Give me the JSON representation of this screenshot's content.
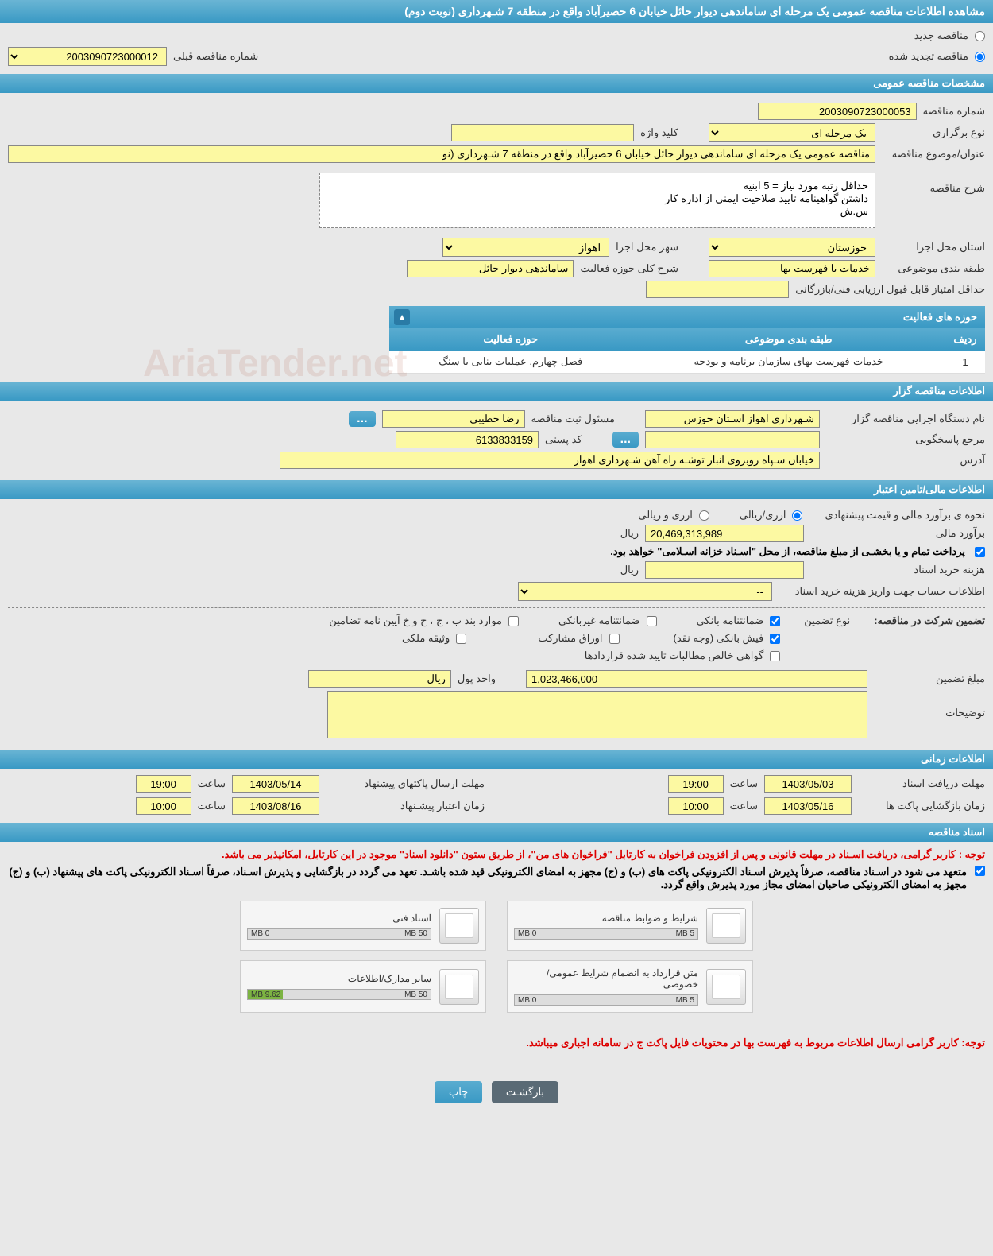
{
  "header": {
    "title": "مشاهده اطلاعات مناقصه عمومی یک مرحله ای ساماندهی دیوار حائل خیابان 6 حصیرآباد واقع در منطقه 7 شـهرداری (نوبت دوم)"
  },
  "tender_type": {
    "new_label": "مناقصه جدید",
    "renewed_label": "مناقصه تجدید شده",
    "prev_number_label": "شماره مناقصه قبلی",
    "prev_number_value": "2003090723000012"
  },
  "sections": {
    "general": "مشخصات مناقصه عمومی",
    "organizer": "اطلاعات مناقصه گزار",
    "financial": "اطلاعات مالی/تامین اعتبار",
    "timing": "اطلاعات زمانی",
    "documents": "اسناد مناقصه"
  },
  "general": {
    "number_label": "شماره مناقصه",
    "number_value": "2003090723000053",
    "type_label": "نوع برگزاری",
    "type_value": "یک مرحله ای",
    "keyword_label": "کلید واژه",
    "keyword_value": "",
    "subject_label": "عنوان/موضوع مناقصه",
    "subject_value": "مناقصه عمومی یک مرحله ای ساماندهی دیوار حائل خیابان 6 حصیرآباد واقع در منطقه 7 شـهرداری (نو",
    "description_label": "شرح مناقصه",
    "description_value": "حداقل رتبه مورد نیاز = 5 ابنیه\nداشتن گواهینامه تایید صلاحیت ایمنی از اداره کار\nس.ش",
    "province_label": "استان محل اجرا",
    "province_value": "خوزستان",
    "city_label": "شهر محل اجرا",
    "city_value": "اهواز",
    "category_label": "طبقه بندی موضوعی",
    "category_value": "خدمات با فهرست بها",
    "activity_label": "شرح کلی حوزه فعالیت",
    "activity_value": "ساماندهی دیوار حائل",
    "min_score_label": "حداقل امتیاز قابل قبول ارزیابی فنی/بازرگانی",
    "min_score_value": ""
  },
  "activity_table": {
    "title": "حوزه های فعالیت",
    "col_row": "ردیف",
    "col_category": "طبقه بندی موضوعی",
    "col_activity": "حوزه فعالیت",
    "row1_num": "1",
    "row1_cat": "خدمات-فهرست بهای سازمان برنامه و بودجه",
    "row1_act": "فصل چهارم. عملیات بنایی با سنگ"
  },
  "organizer": {
    "name_label": "نام دستگاه اجرایی مناقصه گزار",
    "name_value": "شـهرداری اهواز اسـتان خوزس",
    "responsible_label": "مسئول ثبت مناقصه",
    "responsible_value": "رضا خطیبی",
    "contact_label": "مرجع پاسخگویی",
    "contact_value": "",
    "postal_label": "کد پستی",
    "postal_value": "6133833159",
    "address_label": "آدرس",
    "address_value": "خیابان سـپاه روبروی انبار توشـه راه آهن شـهرداری اهواز"
  },
  "financial": {
    "estimate_method_label": "نحوه ی برآورد مالی و قیمت پیشنهادی",
    "currency_rial_label": "ارزی/ریالی",
    "currency_both_label": "ارزی و ریالی",
    "estimate_label": "برآورد مالی",
    "estimate_value": "20,469,313,989",
    "estimate_unit": "ریال",
    "treasury_note": "پرداخت تمام و یا بخشـی از مبلغ مناقصه، از محل \"اسـناد خزانه اسـلامی\" خواهد بود.",
    "purchase_cost_label": "هزینه خرید اسناد",
    "purchase_cost_value": "",
    "purchase_cost_unit": "ریال",
    "account_info_label": "اطلاعات حساب جهت واریز هزینه خرید اسناد",
    "account_info_value": "--",
    "guarantee_title_label": "تضمین شرکت در مناقصه:",
    "guarantee_type_label": "نوع تضمین",
    "cb_bank_guarantee": "ضمانتنامه بانکی",
    "cb_nonbank_guarantee": "ضمانتنامه غیربانکی",
    "cb_articles": "موارد بند ب ، ج ، ح و خ آیین نامه تضامین",
    "cb_bank_receipt": "فیش بانکی (وجه نقد)",
    "cb_participation": "اوراق مشارکت",
    "cb_property": "وثیقه ملکی",
    "cb_contract_receivables": "گواهی خالص مطالبات تایید شده قراردادها",
    "guarantee_amount_label": "مبلغ تضمین",
    "guarantee_amount_value": "1,023,466,000",
    "currency_unit_label": "واحد پول",
    "currency_unit_value": "ریال",
    "notes_label": "توضیحات",
    "notes_value": ""
  },
  "timing": {
    "receive_deadline_label": "مهلت دریافت اسناد",
    "receive_deadline_date": "1403/05/03",
    "receive_deadline_time": "19:00",
    "send_deadline_label": "مهلت ارسال پاکتهای پیشنهاد",
    "send_deadline_date": "1403/05/14",
    "send_deadline_time": "19:00",
    "opening_label": "زمان بازگشایی پاکت ها",
    "opening_date": "1403/05/16",
    "opening_time": "10:00",
    "validity_label": "زمان اعتبار پیشـنهاد",
    "validity_date": "1403/08/16",
    "validity_time": "10:00",
    "time_word": "ساعت"
  },
  "documents": {
    "note1": "توجه : کاربر گرامی، دریافت اسـناد در مهلت قانونی و پس از افزودن فراخوان به کارتابل \"فراخوان های من\"، از طریق ستون \"دانلود اسناد\" موجود در این کارتابل، امکانپذیر می باشد.",
    "note2": "متعهد می شود در اسـناد مناقصه، صرفاً پذیرش اسـناد الکترونیکی پاکت های (ب) و (ج) مجهز به امضای الکترونیکی قید شده باشـد. تعهد می گردد در بازگشایی و پذیرش اسـناد، صرفاً اسـناد الکترونیکی پاکت های پیشنهاد (ب) و (ج) مجهز به امضای الکترونیکی صاحبان امضای مجاز مورد پذیرش واقع گردد.",
    "doc1_title": "شرایط و ضوابط مناقصه",
    "doc1_max": "5 MB",
    "doc1_used": "0 MB",
    "doc2_title": "اسناد فنی",
    "doc2_max": "50 MB",
    "doc2_used": "0 MB",
    "doc3_title": "متن قرارداد به انضمام شرایط عمومی/خصوصی",
    "doc3_max": "5 MB",
    "doc3_used": "0 MB",
    "doc4_title": "سایر مدارک/اطلاعات",
    "doc4_max": "50 MB",
    "doc4_used": "9.62 MB",
    "doc4_fill_pct": "19",
    "note3": "توجه: کاربر گرامی ارسال اطلاعات مربوط به فهرست بها در محتویات فایل پاکت ج در سامانه اجباری میباشد."
  },
  "buttons": {
    "back": "بازگشـت",
    "print": "چاپ"
  },
  "watermark": "AriaTender.net"
}
